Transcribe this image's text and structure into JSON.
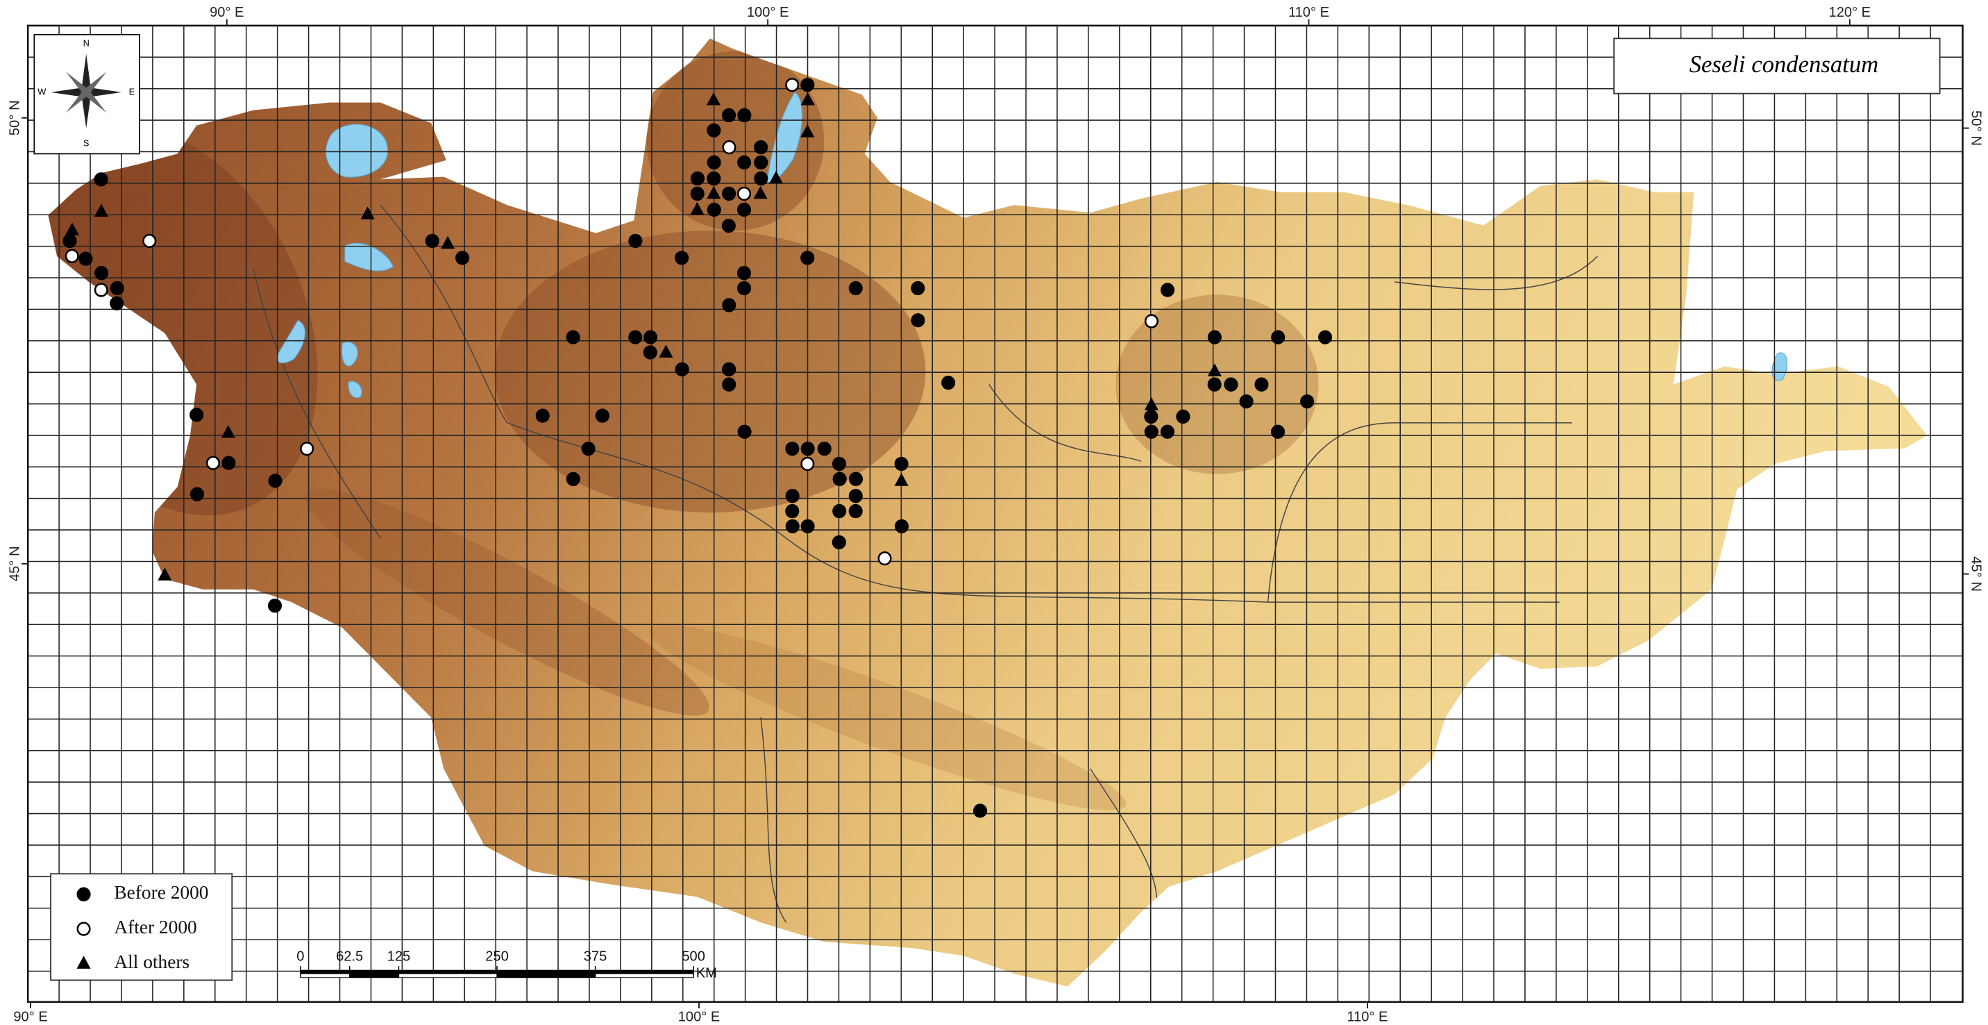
{
  "map": {
    "title": "Seseli condensatum",
    "lon_labels_top": [
      {
        "value": 90,
        "label": "90° E"
      },
      {
        "value": 100,
        "label": "100° E"
      },
      {
        "value": 110,
        "label": "110° E"
      },
      {
        "value": 120,
        "label": "120° E"
      }
    ],
    "lon_labels_bottom": [
      {
        "value": 90,
        "label": "90° E"
      },
      {
        "value": 100,
        "label": "100° E"
      },
      {
        "value": 110,
        "label": "110° E"
      }
    ],
    "lat_labels_left": [
      {
        "value": 50,
        "label": "50° N"
      },
      {
        "value": 45,
        "label": "45° N"
      }
    ],
    "lat_labels_right": [
      {
        "value": 50,
        "label": "50° N"
      },
      {
        "value": 45,
        "label": "45° N"
      }
    ],
    "compass": {
      "north": "N",
      "east": "E",
      "south": "S",
      "west": "W"
    },
    "scale_bar": {
      "ticks": [
        0,
        62.5,
        125,
        250,
        375,
        500
      ],
      "unit": "KM"
    },
    "series": [
      {
        "name": "Before 2000",
        "marker": "filled-circle",
        "points": [
          [
            88.0,
            48.62
          ],
          [
            88.35,
            48.42
          ],
          [
            88.68,
            48.26
          ],
          [
            89.01,
            48.09
          ],
          [
            89.06,
            47.92
          ],
          [
            88.31,
            49.31
          ],
          [
            94.37,
            48.62
          ],
          [
            94.94,
            48.43
          ],
          [
            90.81,
            46.67
          ],
          [
            91.5,
            46.13
          ],
          [
            91.07,
            45.78
          ],
          [
            92.33,
            45.93
          ],
          [
            92.67,
            44.53
          ],
          [
            99.16,
            49.86
          ],
          [
            99.41,
            50.03
          ],
          [
            99.69,
            50.03
          ],
          [
            99.21,
            49.5
          ],
          [
            99.75,
            49.5
          ],
          [
            98.94,
            49.32
          ],
          [
            99.23,
            49.32
          ],
          [
            98.96,
            49.15
          ],
          [
            99.52,
            49.15
          ],
          [
            99.28,
            48.97
          ],
          [
            99.56,
            48.79
          ],
          [
            99.81,
            48.97
          ],
          [
            100.05,
            49.5
          ],
          [
            100.07,
            49.32
          ],
          [
            100.03,
            49.67
          ],
          [
            100.8,
            50.37
          ],
          [
            97.94,
            48.62
          ],
          [
            98.78,
            48.43
          ],
          [
            99.89,
            48.26
          ],
          [
            99.67,
            47.9
          ],
          [
            99.91,
            48.09
          ],
          [
            100.98,
            48.43
          ],
          [
            101.85,
            48.09
          ],
          [
            102.93,
            48.09
          ],
          [
            102.95,
            47.73
          ],
          [
            97.03,
            47.54
          ],
          [
            98.1,
            47.54
          ],
          [
            98.36,
            47.54
          ],
          [
            98.38,
            47.37
          ],
          [
            98.95,
            47.18
          ],
          [
            99.75,
            47.18
          ],
          [
            99.77,
            47.01
          ],
          [
            96.66,
            46.66
          ],
          [
            97.67,
            46.66
          ],
          [
            97.49,
            46.29
          ],
          [
            97.29,
            45.95
          ],
          [
            100.09,
            46.48
          ],
          [
            100.91,
            46.29
          ],
          [
            101.17,
            46.29
          ],
          [
            101.45,
            46.29
          ],
          [
            101.71,
            46.12
          ],
          [
            101.73,
            45.95
          ],
          [
            102.0,
            45.95
          ],
          [
            102.01,
            45.76
          ],
          [
            100.96,
            45.76
          ],
          [
            100.97,
            45.59
          ],
          [
            101.75,
            45.59
          ],
          [
            102.02,
            45.59
          ],
          [
            100.99,
            45.42
          ],
          [
            101.24,
            45.42
          ],
          [
            101.77,
            45.24
          ],
          [
            102.79,
            45.42
          ],
          [
            102.75,
            46.12
          ],
          [
            103.5,
            47.03
          ],
          [
            107.27,
            48.07
          ],
          [
            108.06,
            47.54
          ],
          [
            109.15,
            47.54
          ],
          [
            109.96,
            47.54
          ],
          [
            108.03,
            47.01
          ],
          [
            108.31,
            47.01
          ],
          [
            108.83,
            47.01
          ],
          [
            108.56,
            46.82
          ],
          [
            106.94,
            46.65
          ],
          [
            107.48,
            46.65
          ],
          [
            106.94,
            46.48
          ],
          [
            107.21,
            46.48
          ],
          [
            109.59,
            46.82
          ],
          [
            109.07,
            46.48
          ],
          [
            104.16,
            42.23
          ]
        ]
      },
      {
        "name": "After 2000",
        "marker": "open-circle",
        "points": [
          [
            88.1,
            48.45
          ],
          [
            88.74,
            48.07
          ],
          [
            89.4,
            48.62
          ],
          [
            91.24,
            46.13
          ],
          [
            92.77,
            46.29
          ],
          [
            99.46,
            49.67
          ],
          [
            99.79,
            49.15
          ],
          [
            100.52,
            50.37
          ],
          [
            101.18,
            46.12
          ],
          [
            102.53,
            45.06
          ],
          [
            106.98,
            47.72
          ]
        ]
      },
      {
        "name": "All others",
        "marker": "triangle",
        "points": [
          [
            88.0,
            48.74
          ],
          [
            88.44,
            48.95
          ],
          [
            93.16,
            48.92
          ],
          [
            94.65,
            48.59
          ],
          [
            91.4,
            46.47
          ],
          [
            90.79,
            44.87
          ],
          [
            99.11,
            50.2
          ],
          [
            99.25,
            49.15
          ],
          [
            98.98,
            48.97
          ],
          [
            100.08,
            49.15
          ],
          [
            100.82,
            50.2
          ],
          [
            100.85,
            49.84
          ],
          [
            100.34,
            49.32
          ],
          [
            98.65,
            47.37
          ],
          [
            102.76,
            45.93
          ],
          [
            108.04,
            47.16
          ],
          [
            106.95,
            46.78
          ]
        ]
      }
    ]
  }
}
